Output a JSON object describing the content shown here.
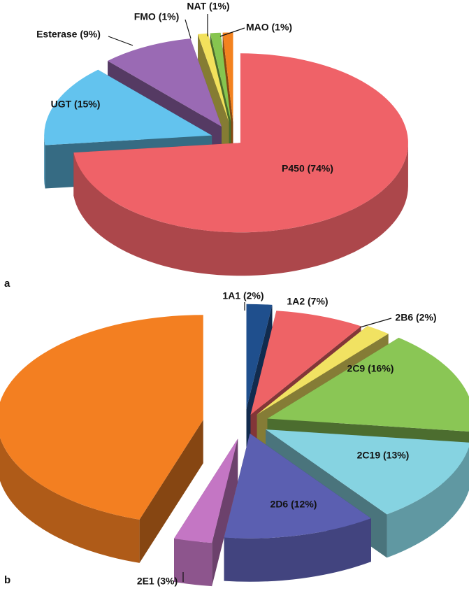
{
  "chart_data": [
    {
      "type": "pie",
      "panel": "a",
      "values": [
        74,
        15,
        9,
        1,
        1,
        1
      ],
      "value_labels": [
        "P450 (74%)",
        "UGT (15%)",
        "Esterase (9%)",
        "FMO (1%)",
        "NAT (1%)",
        "MAO (1%)"
      ],
      "colors": [
        "#ef6268",
        "#63c3ee",
        "#9a6ab4",
        "#f2e15c",
        "#86c54f",
        "#f3821f"
      ]
    },
    {
      "type": "pie",
      "panel": "b",
      "values": [
        2,
        7,
        2,
        16,
        13,
        12,
        3,
        45
      ],
      "value_labels": [
        "1A1 (2%)",
        "1A2 (7%)",
        "2B6 (2%)",
        "2C9 (16%)",
        "2C19 (13%)",
        "2D6 (12%)",
        "2E1 (3%)",
        null
      ],
      "colors": [
        "#1f4f8d",
        "#ee6366",
        "#f1e262",
        "#8ac655",
        "#86d3e1",
        "#5b5fb1",
        "#c476c4",
        "#f37f21"
      ]
    }
  ]
}
